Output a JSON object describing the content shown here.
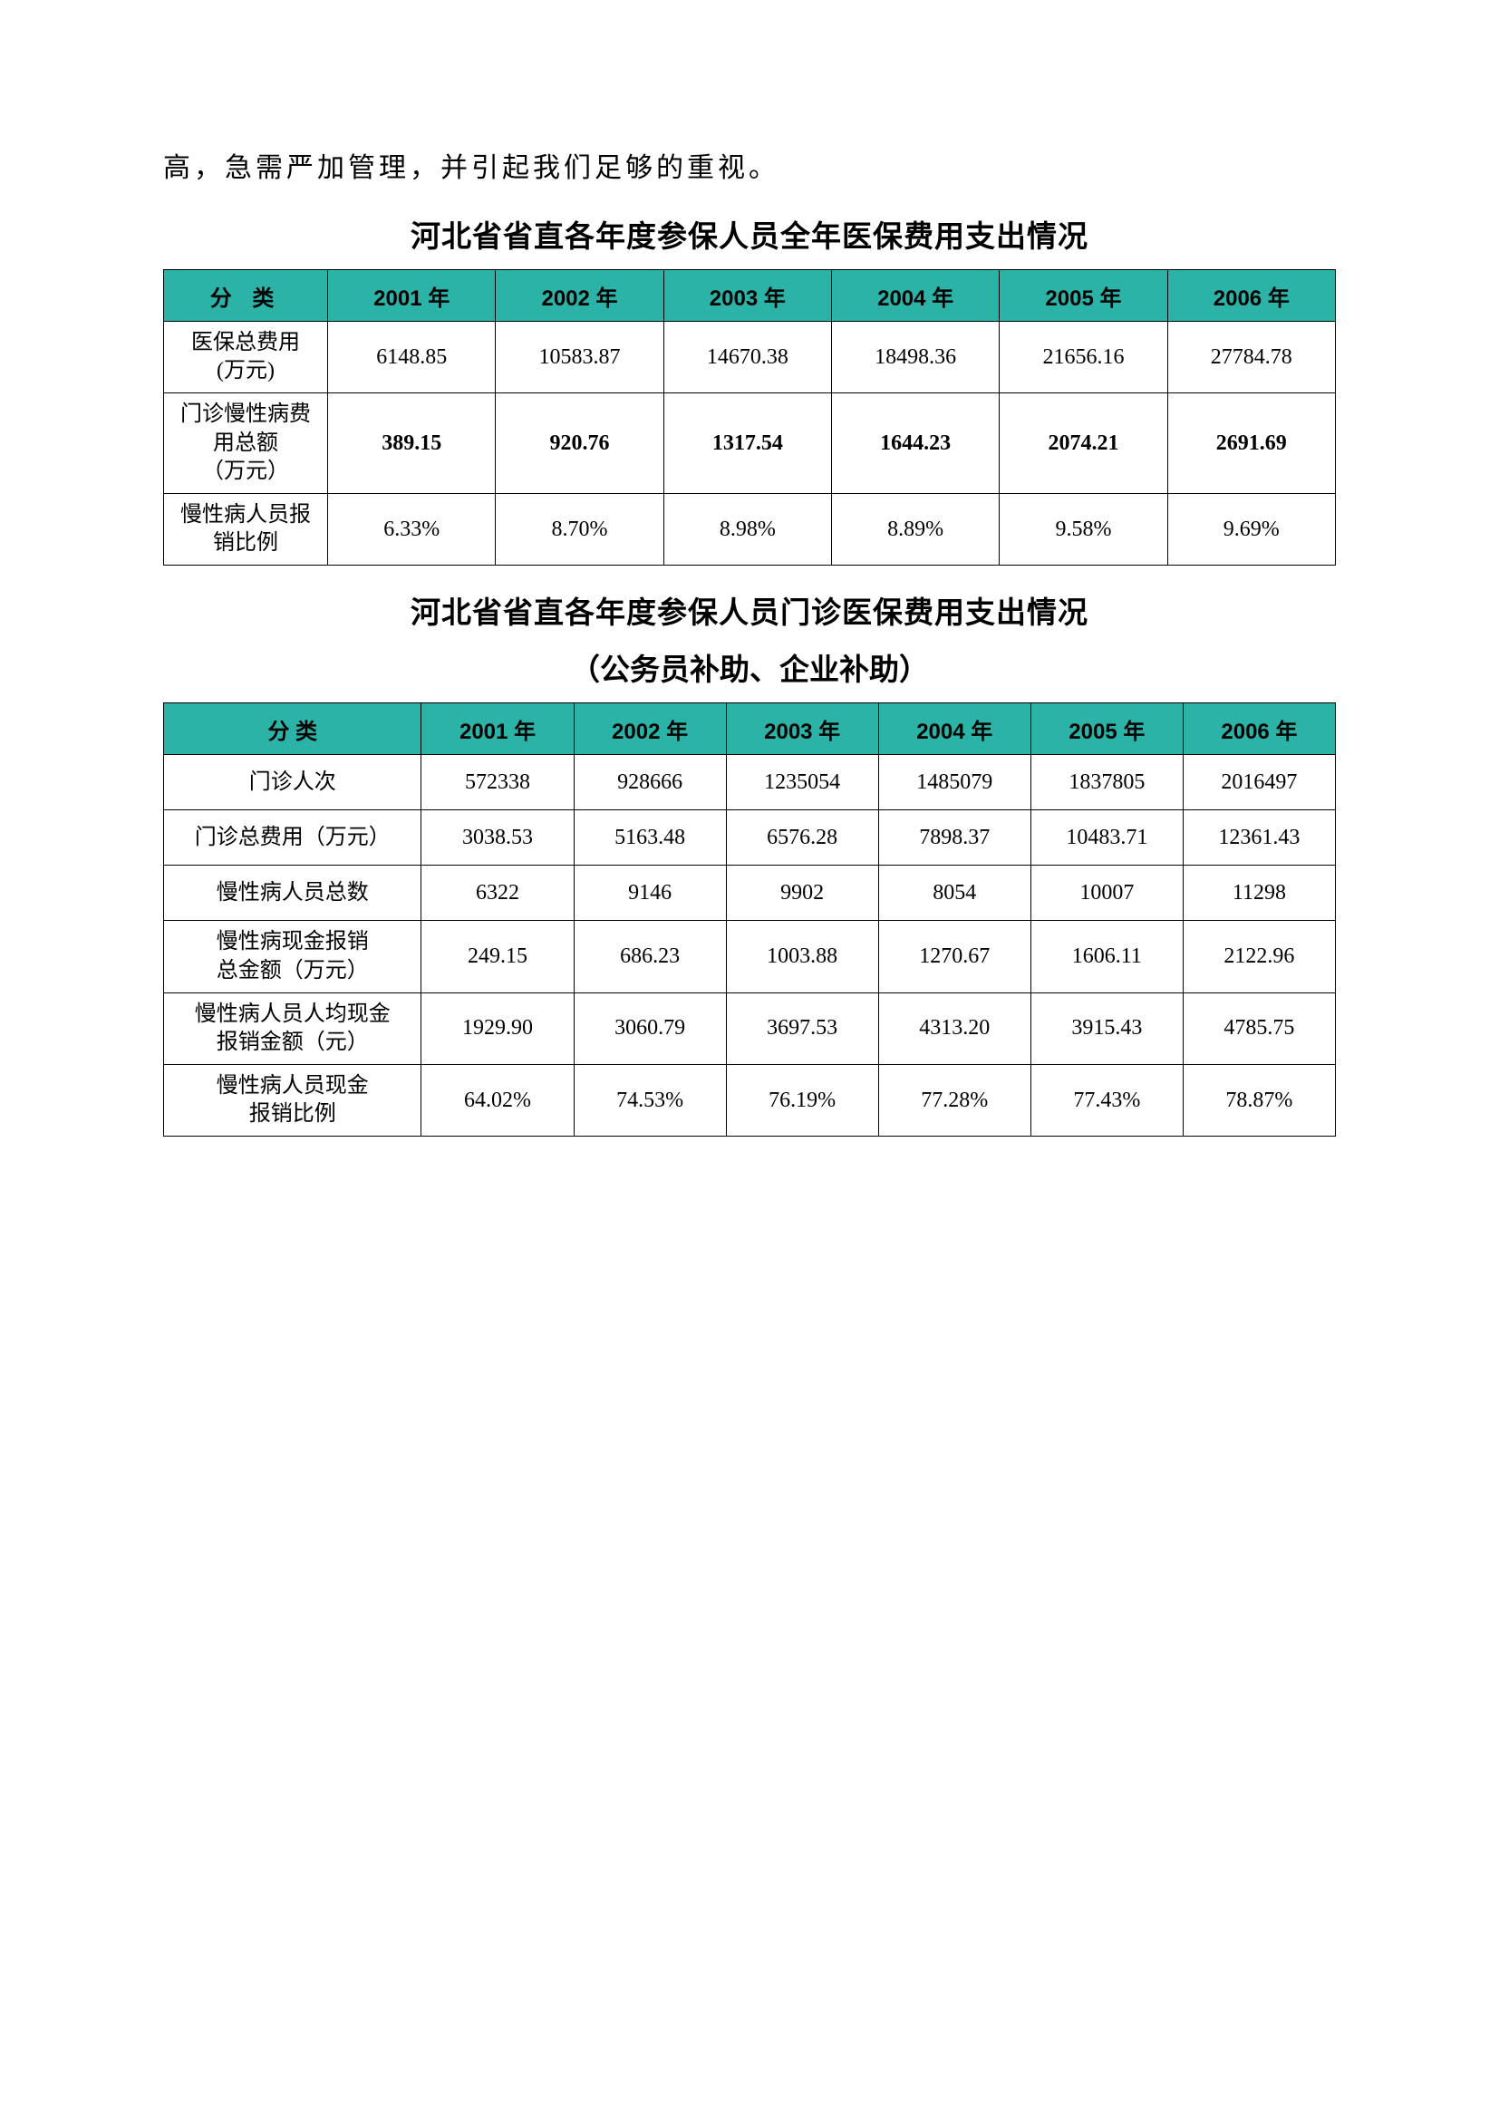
{
  "intro": "高，急需严加管理，并引起我们足够的重视。",
  "table1": {
    "title": "河北省省直各年度参保人员全年医保费用支出情况",
    "header": [
      "分  类",
      "2001 年",
      "2002 年",
      "2003 年",
      "2004 年",
      "2005 年",
      "2006 年"
    ],
    "rows": [
      {
        "label": "医保总费用\n(万元)",
        "values": [
          "6148.85",
          "10583.87",
          "14670.38",
          "18498.36",
          "21656.16",
          "27784.78"
        ],
        "bold": false
      },
      {
        "label": "门诊慢性病费\n用总额\n（万元）",
        "values": [
          "389.15",
          "920.76",
          "1317.54",
          "1644.23",
          "2074.21",
          "2691.69"
        ],
        "bold": true
      },
      {
        "label": "慢性病人员报\n销比例",
        "values": [
          "6.33%",
          "8.70%",
          "8.98%",
          "8.89%",
          "9.58%",
          "9.69%"
        ],
        "bold": false
      }
    ],
    "col1_width": "14%",
    "col_width": "14.33%"
  },
  "table2": {
    "title": "河北省省直各年度参保人员门诊医保费用支出情况",
    "subtitle": "（公务员补助、企业补助）",
    "header": [
      "分        类",
      "2001 年",
      "2002 年",
      "2003 年",
      "2004 年",
      "2005 年",
      "2006 年"
    ],
    "rows": [
      {
        "label": "门诊人次",
        "values": [
          "572338",
          "928666",
          "1235054",
          "1485079",
          "1837805",
          "2016497"
        ]
      },
      {
        "label": "门诊总费用（万元）",
        "values": [
          "3038.53",
          "5163.48",
          "6576.28",
          "7898.37",
          "10483.71",
          "12361.43"
        ]
      },
      {
        "label": "慢性病人员总数",
        "values": [
          "6322",
          "9146",
          "9902",
          "8054",
          "10007",
          "11298"
        ]
      },
      {
        "label": "慢性病现金报销\n总金额（万元）",
        "values": [
          "249.15",
          "686.23",
          "1003.88",
          "1270.67",
          "1606.11",
          "2122.96"
        ]
      },
      {
        "label": "慢性病人员人均现金\n报销金额（元）",
        "values": [
          "1929.90",
          "3060.79",
          "3697.53",
          "4313.20",
          "3915.43",
          "4785.75"
        ]
      },
      {
        "label": "慢性病人员现金\n报销比例",
        "values": [
          "64.02%",
          "74.53%",
          "76.19%",
          "77.28%",
          "77.43%",
          "78.87%"
        ]
      }
    ],
    "col1_width": "22%",
    "col_width": "13%"
  },
  "colors": {
    "header_bg": "#2cb3a8",
    "border": "#000000",
    "text": "#000000",
    "background": "#ffffff"
  }
}
